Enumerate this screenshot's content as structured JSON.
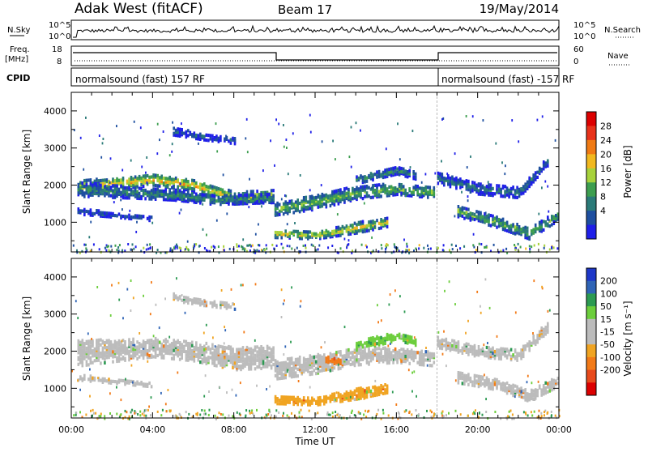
{
  "header": {
    "station": "Adak West (fitACF)",
    "beam": "Beam 17",
    "date": "19/May/2014"
  },
  "top_panels": {
    "nsky_label": "N.Sky",
    "nsky_ticks": [
      "10^5",
      "10^0"
    ],
    "nsearch_label": "N.Search",
    "nsearch_ticks": [
      "10^5",
      "10^0"
    ],
    "freq_label_1": "Freq.",
    "freq_label_2": "[MHz]",
    "freq_ticks": [
      "18",
      "8"
    ],
    "nave_label": "Nave",
    "nave_ticks": [
      "60",
      "0"
    ],
    "cpid_label": "CPID",
    "cpid_segments": [
      {
        "label": "normalsound (fast) 157 RF",
        "start_hour": 0,
        "end_hour": 18
      },
      {
        "label": "normalsound (fast) -157 RF",
        "start_hour": 18,
        "end_hour": 24
      }
    ]
  },
  "colors": {
    "power_scale": [
      "#1f1fe8",
      "#1e4fa0",
      "#2a7a78",
      "#3d9e4f",
      "#a7d23b",
      "#f1b81f",
      "#f07a14",
      "#e8321a",
      "#dc0000"
    ],
    "velocity_scale": [
      "#1e37c8",
      "#2f64b6",
      "#2c9a52",
      "#6cce3c",
      "#bcbcbc",
      "#bcbcbc",
      "#f0a422",
      "#f27a18",
      "#e84a1c",
      "#dc0000"
    ]
  },
  "chart_data": [
    {
      "type": "heatmap",
      "name": "Power",
      "colorbar_label": "Power [dB]",
      "colorbar_ticks": [
        "28",
        "24",
        "20",
        "16",
        "12",
        "8",
        "4"
      ],
      "ylabel": "Slant Range [km]",
      "ylim": [
        200,
        4500
      ],
      "y_ticks": [
        "4000",
        "3000",
        "2000",
        "1000"
      ],
      "x_ticks": [
        "00:00",
        "04:00",
        "08:00",
        "12:00",
        "16:00",
        "20:00",
        "00:00"
      ],
      "xlim_hours": [
        0,
        24
      ],
      "bands": [
        {
          "t": [
            0.3,
            4,
            6,
            8,
            9.9
          ],
          "r": [
            1950,
            2150,
            2000,
            1650,
            1700
          ],
          "w": [
            160,
            150,
            150,
            160,
            160
          ],
          "p": 22
        },
        {
          "t": [
            0.3,
            3,
            5,
            7,
            9.9
          ],
          "r": [
            1900,
            1800,
            1750,
            1600,
            1650
          ],
          "w": [
            200,
            150,
            150,
            120,
            120
          ],
          "p": 12
        },
        {
          "t": [
            0.3,
            2,
            4
          ],
          "r": [
            1300,
            1200,
            1100
          ],
          "w": [
            80,
            60,
            60
          ],
          "p": 8
        },
        {
          "t": [
            5,
            6.5,
            8
          ],
          "r": [
            3450,
            3300,
            3200
          ],
          "w": [
            100,
            80,
            80
          ],
          "p": 8
        },
        {
          "t": [
            10,
            12,
            14,
            16,
            17.9
          ],
          "r": [
            1350,
            1550,
            1800,
            1900,
            1800
          ],
          "w": [
            160,
            200,
            180,
            150,
            150
          ],
          "p": 16
        },
        {
          "t": [
            10,
            12,
            14,
            15.5
          ],
          "r": [
            700,
            650,
            850,
            1000
          ],
          "w": [
            110,
            100,
            140,
            120
          ],
          "p": 20
        },
        {
          "t": [
            14,
            16,
            17
          ],
          "r": [
            2150,
            2400,
            2250
          ],
          "w": [
            110,
            100,
            100
          ],
          "p": 12
        },
        {
          "t": [
            18,
            20,
            22,
            23.5
          ],
          "r": [
            2200,
            1900,
            1800,
            2700
          ],
          "w": [
            150,
            140,
            140,
            120
          ],
          "p": 10
        },
        {
          "t": [
            19,
            21,
            22.5,
            24
          ],
          "r": [
            1300,
            1000,
            700,
            1200
          ],
          "w": [
            150,
            150,
            150,
            130
          ],
          "p": 15
        }
      ]
    },
    {
      "type": "heatmap",
      "name": "Velocity",
      "colorbar_label": "Velocity [m s⁻¹]",
      "colorbar_ticks": [
        "200",
        "100",
        "50",
        "15",
        "-15",
        "-50",
        "-100",
        "-200"
      ],
      "ylabel": "Slant Range [km]",
      "ylim": [
        200,
        4500
      ],
      "y_ticks": [
        "4000",
        "3000",
        "2000",
        "1000"
      ],
      "x_ticks": [
        "00:00",
        "04:00",
        "08:00",
        "12:00",
        "16:00",
        "20:00",
        "00:00"
      ],
      "xlabel": "Time UT",
      "xlim_hours": [
        0,
        24
      ],
      "bands": [
        {
          "t": [
            0.3,
            4,
            6,
            8,
            9.9
          ],
          "r": [
            1950,
            2100,
            2000,
            1800,
            1850
          ],
          "w": [
            350,
            250,
            260,
            300,
            300
          ],
          "v": 0
        },
        {
          "t": [
            0.3,
            2,
            4
          ],
          "r": [
            1300,
            1200,
            1100
          ],
          "w": [
            80,
            60,
            60
          ],
          "v": 0
        },
        {
          "t": [
            5,
            6.5,
            8
          ],
          "r": [
            3450,
            3300,
            3200
          ],
          "w": [
            90,
            70,
            70
          ],
          "v": 0
        },
        {
          "t": [
            10,
            12,
            14,
            16,
            17.9
          ],
          "r": [
            1500,
            1650,
            1850,
            1900,
            1800
          ],
          "w": [
            250,
            250,
            220,
            200,
            200
          ],
          "v": 0
        },
        {
          "t": [
            10,
            12,
            14,
            15.5
          ],
          "r": [
            700,
            650,
            850,
            1000
          ],
          "w": [
            110,
            100,
            140,
            120
          ],
          "v": -30
        },
        {
          "t": [
            14,
            16,
            17
          ],
          "r": [
            2150,
            2400,
            2250
          ],
          "w": [
            120,
            110,
            100
          ],
          "v": 25
        },
        {
          "t": [
            18,
            20,
            22,
            23.5
          ],
          "r": [
            2250,
            2000,
            1900,
            2700
          ],
          "w": [
            150,
            150,
            150,
            130
          ],
          "v": 0
        },
        {
          "t": [
            19,
            21,
            22.5,
            24
          ],
          "r": [
            1300,
            1100,
            800,
            1200
          ],
          "w": [
            150,
            150,
            150,
            130
          ],
          "v": 0
        },
        {
          "t": [
            12.5,
            13.2
          ],
          "r": [
            1800,
            1700
          ],
          "w": [
            80,
            80
          ],
          "v": -60
        }
      ]
    }
  ]
}
